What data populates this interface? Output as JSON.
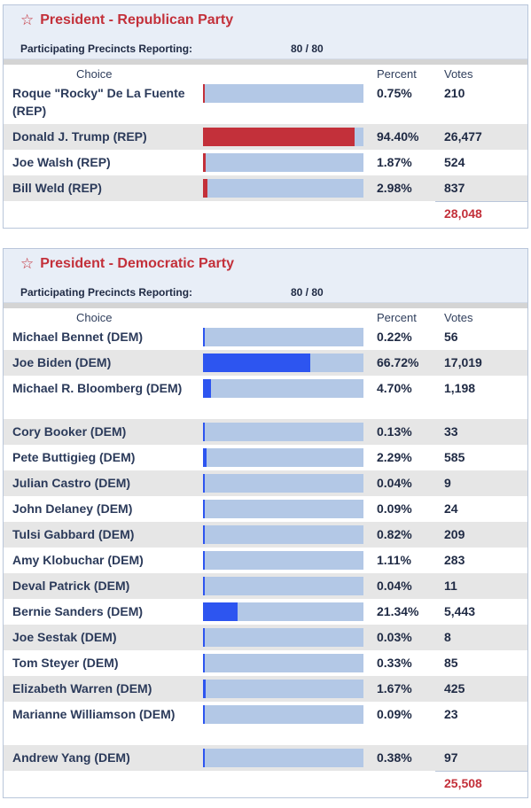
{
  "headers": {
    "choice": "Choice",
    "percent": "Percent",
    "votes": "Votes"
  },
  "colors": {
    "rep": "#c3303a",
    "dem": "#2d55f0"
  },
  "races": [
    {
      "title": "President - Republican Party",
      "precincts_label": "Participating Precincts Reporting:",
      "precincts_value": "80 / 80",
      "party": "rep",
      "total": "28,048",
      "candidates": [
        {
          "name": "Roque \"Rocky\" De La Fuente (REP)",
          "pct": "0.75%",
          "votes": "210",
          "share": 0.75,
          "lines": 2
        },
        {
          "name": "Donald J. Trump (REP)",
          "pct": "94.40%",
          "votes": "26,477",
          "share": 94.4,
          "lines": 1
        },
        {
          "name": "Joe Walsh (REP)",
          "pct": "1.87%",
          "votes": "524",
          "share": 1.87,
          "lines": 1
        },
        {
          "name": "Bill Weld (REP)",
          "pct": "2.98%",
          "votes": "837",
          "share": 2.98,
          "lines": 1
        }
      ]
    },
    {
      "title": "President - Democratic Party",
      "precincts_label": "Participating Precincts Reporting:",
      "precincts_value": "80 / 80",
      "party": "dem",
      "total": "25,508",
      "candidates": [
        {
          "name": "Michael Bennet (DEM)",
          "pct": "0.22%",
          "votes": "56",
          "share": 0.22,
          "lines": 1
        },
        {
          "name": "Joe Biden (DEM)",
          "pct": "66.72%",
          "votes": "17,019",
          "share": 66.72,
          "lines": 1
        },
        {
          "name": "Michael R. Bloomberg (DEM)",
          "pct": "4.70%",
          "votes": "1,198",
          "share": 4.7,
          "lines": 2
        },
        {
          "name": "Cory Booker (DEM)",
          "pct": "0.13%",
          "votes": "33",
          "share": 0.13,
          "lines": 1
        },
        {
          "name": "Pete Buttigieg (DEM)",
          "pct": "2.29%",
          "votes": "585",
          "share": 2.29,
          "lines": 1
        },
        {
          "name": "Julian Castro (DEM)",
          "pct": "0.04%",
          "votes": "9",
          "share": 0.04,
          "lines": 1
        },
        {
          "name": "John Delaney (DEM)",
          "pct": "0.09%",
          "votes": "24",
          "share": 0.09,
          "lines": 1
        },
        {
          "name": "Tulsi Gabbard (DEM)",
          "pct": "0.82%",
          "votes": "209",
          "share": 0.82,
          "lines": 1
        },
        {
          "name": "Amy Klobuchar (DEM)",
          "pct": "1.11%",
          "votes": "283",
          "share": 1.11,
          "lines": 1
        },
        {
          "name": "Deval Patrick (DEM)",
          "pct": "0.04%",
          "votes": "11",
          "share": 0.04,
          "lines": 1
        },
        {
          "name": "Bernie Sanders (DEM)",
          "pct": "21.34%",
          "votes": "5,443",
          "share": 21.34,
          "lines": 1
        },
        {
          "name": "Joe Sestak (DEM)",
          "pct": "0.03%",
          "votes": "8",
          "share": 0.03,
          "lines": 1
        },
        {
          "name": "Tom Steyer (DEM)",
          "pct": "0.33%",
          "votes": "85",
          "share": 0.33,
          "lines": 1
        },
        {
          "name": "Elizabeth Warren (DEM)",
          "pct": "1.67%",
          "votes": "425",
          "share": 1.67,
          "lines": 1
        },
        {
          "name": "Marianne Williamson (DEM)",
          "pct": "0.09%",
          "votes": "23",
          "share": 0.09,
          "lines": 2
        },
        {
          "name": "Andrew Yang (DEM)",
          "pct": "0.38%",
          "votes": "97",
          "share": 0.38,
          "lines": 1
        }
      ]
    }
  ]
}
